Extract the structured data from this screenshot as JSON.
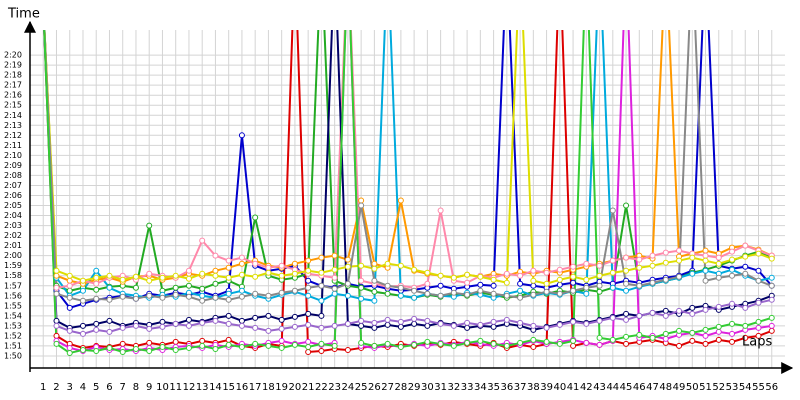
{
  "chart_data": {
    "type": "line",
    "y_label": "Time",
    "x_label": "Laps",
    "grid": true,
    "markers": true,
    "xlim": [
      0,
      57
    ],
    "ylim": [
      108.8,
      142.5
    ],
    "x": [
      1,
      2,
      3,
      4,
      5,
      6,
      7,
      8,
      9,
      10,
      11,
      12,
      13,
      14,
      15,
      16,
      17,
      18,
      19,
      20,
      21,
      22,
      23,
      24,
      25,
      26,
      27,
      28,
      29,
      30,
      31,
      32,
      33,
      34,
      35,
      36,
      37,
      38,
      39,
      40,
      41,
      42,
      43,
      44,
      45,
      46,
      47,
      48,
      49,
      50,
      51,
      52,
      53,
      54,
      55,
      56
    ],
    "xticks": [
      1,
      2,
      3,
      4,
      5,
      6,
      7,
      8,
      9,
      10,
      11,
      12,
      13,
      14,
      15,
      16,
      17,
      18,
      19,
      20,
      21,
      22,
      23,
      24,
      25,
      26,
      27,
      28,
      29,
      30,
      31,
      32,
      33,
      34,
      35,
      36,
      37,
      38,
      39,
      40,
      41,
      42,
      43,
      44,
      45,
      46,
      47,
      48,
      49,
      50,
      51,
      52,
      53,
      54,
      55,
      56
    ],
    "yticks": [
      {
        "value": 110,
        "label": "1:50"
      },
      {
        "value": 111,
        "label": "1:51"
      },
      {
        "value": 112,
        "label": "1:52"
      },
      {
        "value": 113,
        "label": "1:53"
      },
      {
        "value": 114,
        "label": "1:54"
      },
      {
        "value": 115,
        "label": "1:55"
      },
      {
        "value": 116,
        "label": "1:56"
      },
      {
        "value": 117,
        "label": "1:57"
      },
      {
        "value": 118,
        "label": "1:58"
      },
      {
        "value": 119,
        "label": "1:59"
      },
      {
        "value": 120,
        "label": "2:00"
      },
      {
        "value": 121,
        "label": "2:01"
      },
      {
        "value": 122,
        "label": "2:02"
      },
      {
        "value": 123,
        "label": "2:03"
      },
      {
        "value": 124,
        "label": "2:04"
      },
      {
        "value": 125,
        "label": "2:05"
      },
      {
        "value": 126,
        "label": "2:06"
      },
      {
        "value": 127,
        "label": "2:07"
      },
      {
        "value": 128,
        "label": "2:08"
      },
      {
        "value": 129,
        "label": "2:09"
      },
      {
        "value": 130,
        "label": "2:10"
      },
      {
        "value": 131,
        "label": "2:11"
      },
      {
        "value": 132,
        "label": "2:12"
      },
      {
        "value": 133,
        "label": "2:13"
      },
      {
        "value": 134,
        "label": "2:14"
      },
      {
        "value": 135,
        "label": "2:15"
      },
      {
        "value": 136,
        "label": "2:16"
      },
      {
        "value": 137,
        "label": "2:17"
      },
      {
        "value": 138,
        "label": "2:18"
      },
      {
        "value": 139,
        "label": "2:19"
      },
      {
        "value": 140,
        "label": "2:20"
      }
    ],
    "series": [
      {
        "color": "#0000cc",
        "values": [
          145,
          116.5,
          114.8,
          115.2,
          115.6,
          115.8,
          116.0,
          115.7,
          116.2,
          116.0,
          116.3,
          116.1,
          116.4,
          116.0,
          116.5,
          132.0,
          119.0,
          118.5,
          118.7,
          119.0,
          117.5,
          117.0,
          116.8,
          117.2,
          116.9,
          117.0,
          116.7,
          116.5,
          116.6,
          116.8,
          117.0,
          116.7,
          116.9,
          117.1,
          117.0,
          150,
          117.2,
          117.0,
          116.8,
          117.1,
          117.3,
          117.0,
          117.4,
          117.2,
          117.5,
          117.3,
          117.6,
          117.8,
          118.0,
          118.5,
          150,
          119.0,
          118.7,
          118.9,
          118.5,
          117.0
        ]
      },
      {
        "color": "#22aa22",
        "values": [
          145,
          117.0,
          116.5,
          116.8,
          116.6,
          116.9,
          117.0,
          116.8,
          123.0,
          116.5,
          116.8,
          117.0,
          116.7,
          117.2,
          117.5,
          116.9,
          123.8,
          118.0,
          117.6,
          117.8,
          118.2,
          150,
          117.5,
          117.0,
          116.8,
          116.4,
          116.2,
          116.0,
          115.8,
          116.1,
          115.9,
          116.2,
          116.0,
          116.3,
          116.1,
          115.8,
          116.0,
          116.4,
          116.2,
          116.5,
          116.3,
          116.6,
          116.4,
          116.8,
          125.0,
          117.0,
          117.2,
          117.5,
          117.8,
          118.3,
          118.6,
          119.0,
          119.5,
          120.0,
          120.4,
          119.8
        ]
      },
      {
        "color": "#dd0000",
        "values": [
          145,
          112.0,
          111.2,
          110.8,
          111.0,
          110.9,
          111.2,
          111.0,
          111.3,
          111.1,
          111.4,
          111.2,
          111.5,
          111.3,
          111.6,
          111.0,
          110.8,
          111.2,
          111.0,
          150,
          110.4,
          110.5,
          110.7,
          110.6,
          110.8,
          111.0,
          110.9,
          111.2,
          111.0,
          111.3,
          111.1,
          111.4,
          111.2,
          111.0,
          111.3,
          110.8,
          111.1,
          110.9,
          111.2,
          150,
          111.0,
          111.3,
          111.1,
          111.5,
          111.2,
          111.4,
          111.6,
          111.3,
          111.0,
          111.5,
          111.2,
          111.6,
          111.4,
          111.8,
          112.0,
          112.5
        ]
      },
      {
        "color": "#dd22dd",
        "values": [
          145,
          111.5,
          110.8,
          110.5,
          110.9,
          110.6,
          110.7,
          110.5,
          110.8,
          110.6,
          110.9,
          111.0,
          110.8,
          111.1,
          110.9,
          111.2,
          111.0,
          111.3,
          111.5,
          111.2,
          111.4,
          111.1,
          111.3,
          150,
          111.0,
          110.8,
          111.1,
          110.9,
          111.2,
          111.0,
          111.3,
          111.1,
          111.4,
          111.2,
          111.0,
          111.3,
          111.1,
          111.5,
          111.2,
          111.4,
          111.6,
          111.3,
          111.1,
          111.5,
          150,
          111.8,
          112.0,
          111.7,
          112.1,
          112.3,
          112.0,
          112.4,
          112.2,
          112.6,
          112.8,
          113.0
        ]
      },
      {
        "color": "#00aadd",
        "values": [
          145,
          117.8,
          116.0,
          116.5,
          118.5,
          116.8,
          116.2,
          116.0,
          115.8,
          116.1,
          115.9,
          116.3,
          116.0,
          115.8,
          116.2,
          116.5,
          116.0,
          115.7,
          116.1,
          116.4,
          116.0,
          115.5,
          116.2,
          116.0,
          115.7,
          115.5,
          150,
          116.0,
          115.8,
          116.2,
          116.0,
          115.9,
          116.3,
          116.1,
          115.8,
          116.2,
          116.5,
          116.0,
          116.3,
          116.1,
          116.5,
          116.2,
          150,
          116.8,
          116.5,
          116.9,
          117.2,
          117.5,
          117.8,
          118.2,
          118.5,
          118.2,
          118.6,
          118.0,
          117.5,
          117.8
        ]
      },
      {
        "color": "#ff9900",
        "values": [
          145,
          118.0,
          117.5,
          117.2,
          117.6,
          117.8,
          117.4,
          117.9,
          118.0,
          117.6,
          117.8,
          118.2,
          118.0,
          118.5,
          118.8,
          119.2,
          119.5,
          119.0,
          118.8,
          119.2,
          119.5,
          119.8,
          120.0,
          119.6,
          125.5,
          119.2,
          118.8,
          125.5,
          118.5,
          118.2,
          118.0,
          117.8,
          118.1,
          117.9,
          118.2,
          118.0,
          118.4,
          118.2,
          118.5,
          118.3,
          118.6,
          118.9,
          119.2,
          119.5,
          119.8,
          120.0,
          119.7,
          150,
          119.9,
          120.2,
          120.5,
          120.2,
          120.8,
          121.0,
          120.6,
          120.0
        ]
      },
      {
        "color": "#ff88aa",
        "values": [
          145,
          116.8,
          117.0,
          117.5,
          117.2,
          117.8,
          118.0,
          117.6,
          118.2,
          118.0,
          117.8,
          118.5,
          121.5,
          120.0,
          119.5,
          119.8,
          119.2,
          118.8,
          119.0,
          118.6,
          118.2,
          118.0,
          117.8,
          150,
          117.5,
          117.2,
          116.9,
          117.0,
          116.8,
          117.2,
          124.5,
          117.5,
          117.3,
          118.0,
          117.8,
          118.2,
          118.0,
          118.5,
          118.3,
          118.6,
          118.9,
          119.2,
          119.0,
          119.5,
          119.8,
          119.6,
          120.0,
          120.3,
          120.5,
          120.2,
          120.0,
          119.8,
          120.4,
          121.0,
          120.5,
          120.0
        ]
      },
      {
        "color": "#000066",
        "values": [
          145,
          113.5,
          112.8,
          113.0,
          113.2,
          113.5,
          113.0,
          113.3,
          113.1,
          113.4,
          113.2,
          113.6,
          113.4,
          113.8,
          114.0,
          113.5,
          113.8,
          114.0,
          113.6,
          113.9,
          114.2,
          114.0,
          150,
          113.2,
          113.0,
          112.8,
          113.1,
          112.9,
          113.2,
          113.0,
          113.3,
          113.1,
          112.8,
          113.0,
          112.9,
          113.2,
          113.0,
          112.6,
          112.9,
          113.2,
          113.5,
          113.3,
          113.6,
          113.9,
          114.2,
          114.0,
          114.3,
          114.5,
          114.2,
          114.8,
          115.0,
          114.6,
          114.9,
          115.2,
          115.5,
          116.0
        ]
      },
      {
        "color": "#dddd00",
        "values": [
          145,
          118.5,
          118.0,
          117.5,
          117.8,
          118.0,
          117.6,
          117.9,
          117.5,
          117.8,
          118.0,
          117.7,
          118.2,
          118.0,
          117.8,
          118.1,
          117.9,
          118.3,
          118.0,
          118.2,
          118.5,
          118.3,
          118.6,
          118.9,
          119.0,
          118.7,
          119.2,
          119.0,
          118.6,
          118.3,
          118.0,
          117.8,
          118.1,
          117.9,
          117.6,
          117.3,
          150,
          117.5,
          117.2,
          117.6,
          117.9,
          117.6,
          118.0,
          118.3,
          118.5,
          118.8,
          119.0,
          119.3,
          119.5,
          119.8,
          119.5,
          119.2,
          119.6,
          119.9,
          120.2,
          119.7
        ]
      },
      {
        "color": "#888888",
        "values": [
          145,
          116.2,
          115.8,
          115.5,
          115.7,
          115.6,
          115.9,
          115.7,
          116.0,
          115.8,
          116.1,
          115.9,
          115.5,
          115.8,
          115.6,
          115.9,
          116.2,
          116.0,
          116.3,
          116.5,
          116.8,
          117.0,
          116.7,
          117.2,
          125.0,
          117.5,
          117.0,
          116.8,
          116.5,
          116.2,
          116.0,
          116.3,
          116.1,
          116.5,
          116.2,
          116.0,
          115.8,
          116.1,
          116.4,
          116.2,
          116.5,
          116.8,
          117.0,
          124.5,
          117.2,
          117.0,
          117.3,
          117.6,
          117.9,
          150,
          117.5,
          117.8,
          118.0,
          118.2,
          117.5,
          117.0
        ]
      },
      {
        "color": "#9966cc",
        "values": [
          145,
          113.0,
          112.5,
          112.2,
          112.6,
          112.4,
          112.8,
          113.0,
          112.7,
          112.9,
          113.2,
          113.0,
          113.3,
          113.5,
          113.2,
          113.0,
          112.8,
          112.5,
          112.7,
          112.9,
          113.1,
          112.8,
          113.0,
          113.2,
          113.5,
          113.3,
          113.6,
          113.4,
          113.7,
          113.5,
          113.2,
          113.0,
          113.3,
          113.1,
          113.4,
          113.6,
          113.3,
          113.0,
          112.8,
          113.1,
          113.4,
          113.2,
          113.5,
          113.8,
          113.6,
          114.0,
          114.3,
          114.0,
          114.5,
          114.2,
          114.6,
          114.9,
          115.2,
          114.8,
          115.3,
          115.6
        ]
      },
      {
        "color": "#33cc33",
        "values": [
          145,
          111.2,
          110.3,
          110.6,
          110.5,
          110.8,
          110.4,
          110.7,
          110.5,
          110.9,
          110.6,
          110.8,
          111.0,
          110.7,
          111.1,
          110.9,
          111.2,
          111.0,
          110.8,
          111.1,
          110.9,
          111.2,
          111.0,
          150,
          111.3,
          111.0,
          111.2,
          110.9,
          111.1,
          111.4,
          111.2,
          111.0,
          111.3,
          111.5,
          111.2,
          111.0,
          111.3,
          111.6,
          111.4,
          111.2,
          111.5,
          150,
          111.8,
          111.6,
          111.9,
          112.1,
          111.8,
          112.2,
          112.5,
          112.3,
          112.6,
          112.9,
          113.2,
          113.0,
          113.4,
          113.8
        ]
      }
    ]
  }
}
